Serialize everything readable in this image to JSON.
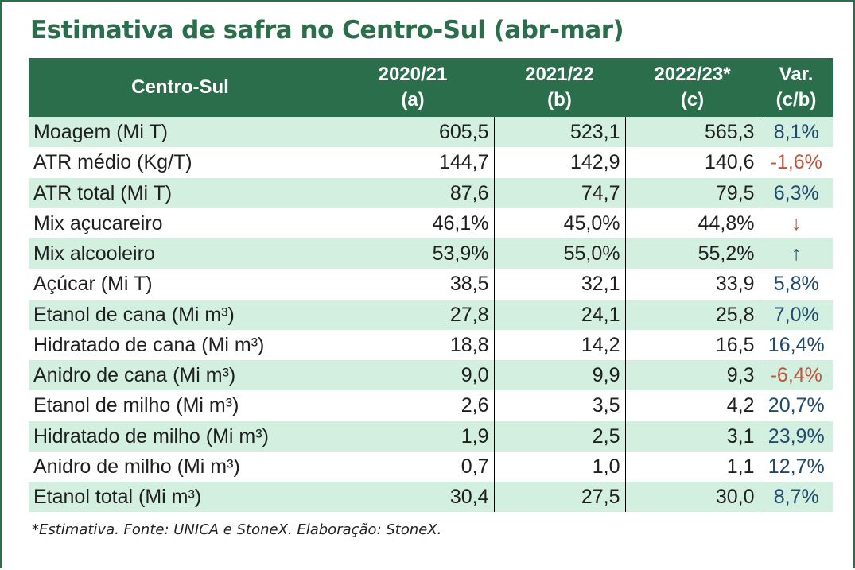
{
  "chart_data": {
    "type": "table",
    "title": "Estimativa de safra no Centro-Sul (abr-mar)",
    "header": {
      "row_label": "Centro-Sul",
      "columns": [
        {
          "line1": "2020/21",
          "line2": "(a)"
        },
        {
          "line1": "2021/22",
          "line2": "(b)"
        },
        {
          "line1": "2022/23*",
          "line2": "(c)"
        },
        {
          "line1": "Var.",
          "line2": "(c/b)"
        }
      ]
    },
    "rows": [
      {
        "label": "Moagem (Mi T)",
        "a": "605,5",
        "b": "523,1",
        "c": "565,3",
        "var": "8,1%",
        "tone": "pos"
      },
      {
        "label": "ATR médio (Kg/T)",
        "a": "144,7",
        "b": "142,9",
        "c": "140,6",
        "var": "-1,6%",
        "tone": "neg"
      },
      {
        "label": "ATR total (Mi T)",
        "a": "87,6",
        "b": "74,7",
        "c": "79,5",
        "var": "6,3%",
        "tone": "pos"
      },
      {
        "label": "Mix açucareiro",
        "a": "46,1%",
        "b": "45,0%",
        "c": "44,8%",
        "var": "↓",
        "tone": "neg"
      },
      {
        "label": "Mix alcooleiro",
        "a": "53,9%",
        "b": "55,0%",
        "c": "55,2%",
        "var": "↑",
        "tone": "pos"
      },
      {
        "label": "Açúcar (Mi T)",
        "a": "38,5",
        "b": "32,1",
        "c": "33,9",
        "var": "5,8%",
        "tone": "pos"
      },
      {
        "label": "Etanol de cana (Mi m³)",
        "a": "27,8",
        "b": "24,1",
        "c": "25,8",
        "var": "7,0%",
        "tone": "pos"
      },
      {
        "label": "Hidratado de cana (Mi m³)",
        "a": "18,8",
        "b": "14,2",
        "c": "16,5",
        "var": "16,4%",
        "tone": "pos"
      },
      {
        "label": "Anidro de cana (Mi m³)",
        "a": "9,0",
        "b": "9,9",
        "c": "9,3",
        "var": "-6,4%",
        "tone": "neg"
      },
      {
        "label": "Etanol de milho (Mi m³)",
        "a": "2,6",
        "b": "3,5",
        "c": "4,2",
        "var": "20,7%",
        "tone": "pos"
      },
      {
        "label": "Hidratado de milho (Mi m³)",
        "a": "1,9",
        "b": "2,5",
        "c": "3,1",
        "var": "23,9%",
        "tone": "pos"
      },
      {
        "label": "Anidro de milho (Mi m³)",
        "a": "0,7",
        "b": "1,0",
        "c": "1,1",
        "var": "12,7%",
        "tone": "pos"
      },
      {
        "label": "Etanol total (Mi m³)",
        "a": "30,4",
        "b": "27,5",
        "c": "30,0",
        "var": "8,7%",
        "tone": "pos"
      }
    ],
    "footnote": "*Estimativa. Fonte: UNICA e StoneX. Elaboração: StoneX."
  },
  "colors": {
    "header_bg": "#2a6e4c",
    "stripe": "#d3efe0",
    "positive": "#1f4a6b",
    "negative": "#c0533a"
  }
}
